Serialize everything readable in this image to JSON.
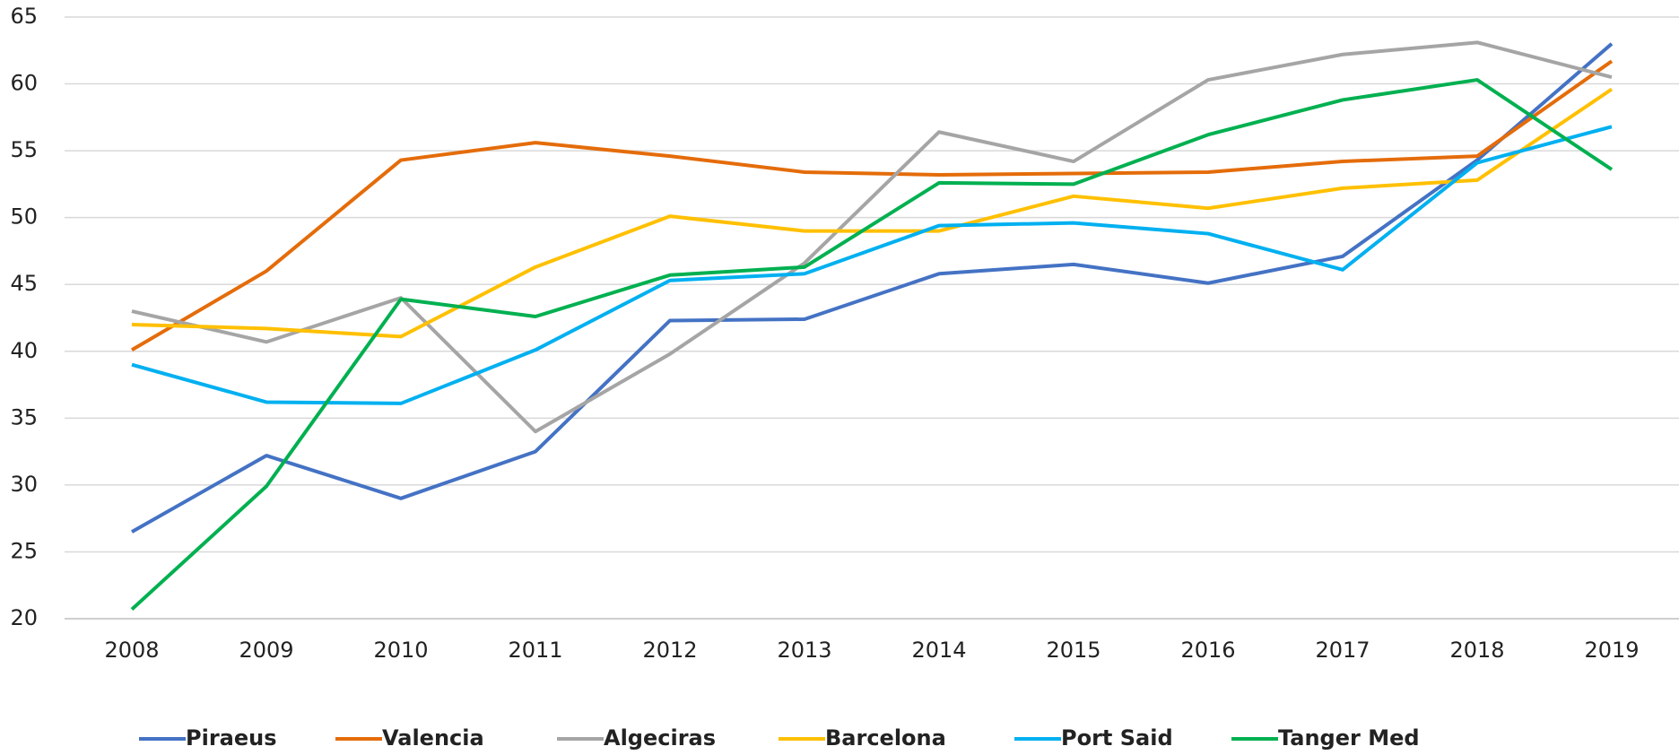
{
  "chart_data": {
    "type": "line",
    "categories": [
      "2008",
      "2009",
      "2010",
      "2011",
      "2012",
      "2013",
      "2014",
      "2015",
      "2016",
      "2017",
      "2018",
      "2019"
    ],
    "series": [
      {
        "name": "Piraeus",
        "color": "#4472c4",
        "values": [
          26.5,
          32.2,
          29.0,
          32.5,
          42.3,
          42.4,
          45.8,
          46.5,
          45.1,
          47.1,
          54.3,
          63.0
        ]
      },
      {
        "name": "Valencia",
        "color": "#e46c0a",
        "values": [
          40.1,
          46.0,
          54.3,
          55.6,
          54.6,
          53.4,
          53.2,
          53.3,
          53.4,
          54.2,
          54.6,
          61.7
        ]
      },
      {
        "name": "Algeciras",
        "color": "#a5a5a5",
        "values": [
          43.0,
          40.7,
          44.0,
          34.0,
          39.8,
          46.6,
          56.4,
          54.2,
          60.3,
          62.2,
          63.1,
          60.5
        ]
      },
      {
        "name": "Barcelona",
        "color": "#ffc000",
        "values": [
          42.0,
          41.7,
          41.1,
          46.3,
          50.1,
          49.0,
          49.0,
          51.6,
          50.7,
          52.2,
          52.8,
          59.6
        ]
      },
      {
        "name": "Port Said",
        "color": "#00b0f0",
        "values": [
          39.0,
          36.2,
          36.1,
          40.1,
          45.3,
          45.8,
          49.4,
          49.6,
          48.8,
          46.1,
          54.1,
          56.8
        ]
      },
      {
        "name": "Tanger Med",
        "color": "#00b050",
        "values": [
          20.7,
          29.9,
          43.9,
          42.6,
          45.7,
          46.3,
          52.6,
          52.5,
          56.2,
          58.8,
          60.3,
          53.6
        ]
      }
    ],
    "ylim": [
      20,
      65
    ],
    "yticks": [
      20,
      25,
      30,
      35,
      40,
      45,
      50,
      55,
      60,
      65
    ],
    "grid": true,
    "legend": "bottom"
  }
}
